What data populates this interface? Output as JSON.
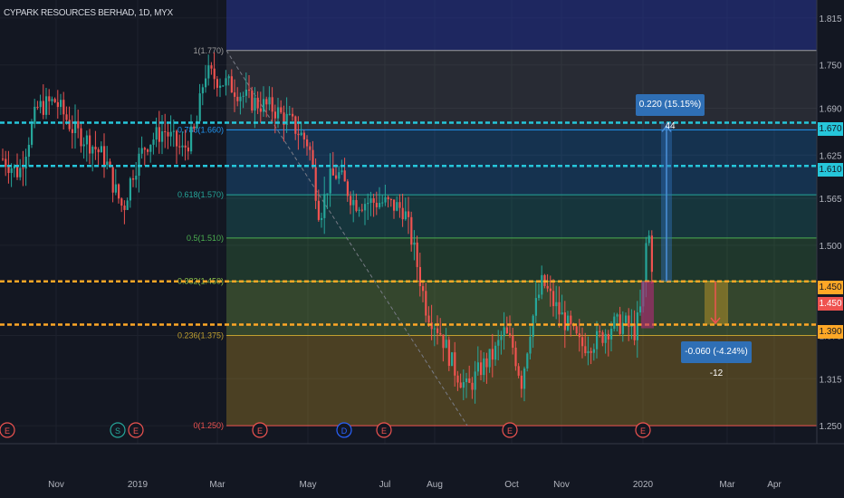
{
  "header": {
    "title": "CYPARK RESOURCES BERHAD, 1D, MYX"
  },
  "colors": {
    "background": "#131722",
    "up": "#26a69a",
    "down": "#ef5350",
    "cyan_line": "#26c6da",
    "orange_line": "#ffa726",
    "measure_blue": "#2f6fb5"
  },
  "chart_data": {
    "type": "candlestick",
    "title": "CYPARK RESOURCES BERHAD, 1D, MYX",
    "ylim": [
      1.225,
      1.84
    ],
    "y_ticks": [
      "1.815",
      "1.750",
      "1.690",
      "1.625",
      "1.565",
      "1.500",
      "1.375",
      "1.315",
      "1.250"
    ],
    "x_ticks": [
      "Nov",
      "2019",
      "Mar",
      "May",
      "Jul",
      "Aug",
      "Oct",
      "Nov",
      "2020",
      "Mar",
      "Apr"
    ],
    "fib_levels": [
      {
        "ratio": "1",
        "price": 1.77,
        "label": "1(1.770)"
      },
      {
        "ratio": "0.786",
        "price": 1.66,
        "label": "0.786(1.660)"
      },
      {
        "ratio": "0.618",
        "price": 1.57,
        "label": "0.618(1.570)"
      },
      {
        "ratio": "0.5",
        "price": 1.51,
        "label": "0.5(1.510)"
      },
      {
        "ratio": "0.382",
        "price": 1.45,
        "label": "0.382(1.450)"
      },
      {
        "ratio": "0.236",
        "price": 1.375,
        "label": "0.236(1.375)"
      },
      {
        "ratio": "0",
        "price": 1.25,
        "label": "0(1.250)"
      }
    ],
    "horizontal_lines": [
      {
        "price": 1.67,
        "label": "1.670",
        "color": "cyan"
      },
      {
        "price": 1.61,
        "label": "1.610",
        "color": "cyan"
      },
      {
        "price": 1.45,
        "label": "1.450",
        "color": "orange"
      },
      {
        "price": 1.39,
        "label": "1.390",
        "color": "orange"
      }
    ],
    "last_price": "1.450",
    "measure_up": "0.220 (15.15%) 44",
    "measure_down": "-0.060 (-4.24%) -12",
    "events": [
      "E",
      "S",
      "E",
      "E",
      "D",
      "E",
      "E",
      "E"
    ]
  }
}
